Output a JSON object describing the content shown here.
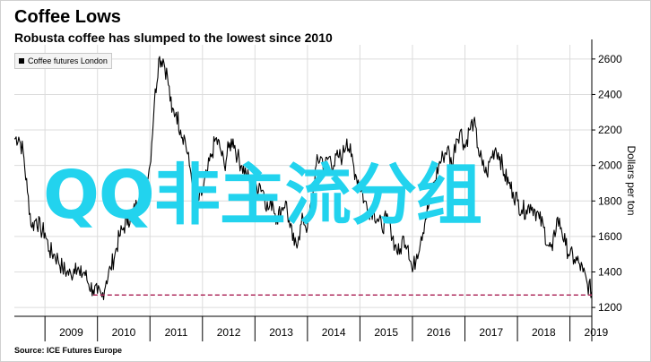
{
  "header": {
    "title": "Coffee Lows",
    "subtitle": "Robusta coffee has slumped to the lowest since 2010"
  },
  "legend_label": "Coffee futures London",
  "source": "Source: ICE Futures Europe",
  "watermark": "QQ非主流分组",
  "colors": {
    "line": "#000000",
    "reference": "#b03060",
    "grid": "#dcdcdc",
    "watermark": "#22d3ee"
  },
  "chart_data": {
    "type": "line",
    "title": "Coffee Lows",
    "subtitle": "Robusta coffee has slumped to the lowest since 2010",
    "xlabel": "",
    "ylabel": "Dollars per ton",
    "x_tick_labels": [
      "2009",
      "2010",
      "2011",
      "2012",
      "2013",
      "2014",
      "2015",
      "2016",
      "2017",
      "2018",
      "2019"
    ],
    "y_ticks": [
      1200,
      1400,
      1600,
      1800,
      2000,
      2200,
      2400,
      2600
    ],
    "xlim": [
      "2008-06",
      "2019-06"
    ],
    "ylim": [
      1150,
      2680
    ],
    "grid": true,
    "legend_position": "top-left",
    "reference_line": {
      "value": 1270,
      "style": "dashed",
      "from": "2009-12",
      "to": "2019-06"
    },
    "series": [
      {
        "name": "Coffee futures London",
        "points": [
          [
            "2008-06",
            2150
          ],
          [
            "2008-07",
            2160
          ],
          [
            "2008-08",
            2080
          ],
          [
            "2008-09",
            1850
          ],
          [
            "2008-10",
            1650
          ],
          [
            "2008-11",
            1700
          ],
          [
            "2008-12",
            1640
          ],
          [
            "2009-01",
            1620
          ],
          [
            "2009-02",
            1520
          ],
          [
            "2009-03",
            1500
          ],
          [
            "2009-04",
            1470
          ],
          [
            "2009-05",
            1420
          ],
          [
            "2009-06",
            1400
          ],
          [
            "2009-07",
            1380
          ],
          [
            "2009-08",
            1450
          ],
          [
            "2009-09",
            1380
          ],
          [
            "2009-10",
            1400
          ],
          [
            "2009-11",
            1330
          ],
          [
            "2009-12",
            1300
          ],
          [
            "2010-01",
            1280
          ],
          [
            "2010-02",
            1260
          ],
          [
            "2010-03",
            1350
          ],
          [
            "2010-04",
            1420
          ],
          [
            "2010-05",
            1500
          ],
          [
            "2010-06",
            1600
          ],
          [
            "2010-07",
            1650
          ],
          [
            "2010-08",
            1700
          ],
          [
            "2010-09",
            1720
          ],
          [
            "2010-10",
            1780
          ],
          [
            "2010-11",
            1830
          ],
          [
            "2010-12",
            1900
          ],
          [
            "2011-01",
            2000
          ],
          [
            "2011-02",
            2350
          ],
          [
            "2011-03",
            2600
          ],
          [
            "2011-04",
            2600
          ],
          [
            "2011-05",
            2500
          ],
          [
            "2011-06",
            2300
          ],
          [
            "2011-07",
            2300
          ],
          [
            "2011-08",
            2200
          ],
          [
            "2011-09",
            2150
          ],
          [
            "2011-10",
            2000
          ],
          [
            "2011-11",
            1900
          ],
          [
            "2011-12",
            1800
          ],
          [
            "2012-01",
            1850
          ],
          [
            "2012-02",
            1950
          ],
          [
            "2012-03",
            2050
          ],
          [
            "2012-04",
            2150
          ],
          [
            "2012-05",
            2100
          ],
          [
            "2012-06",
            2000
          ],
          [
            "2012-07",
            2100
          ],
          [
            "2012-08",
            2150
          ],
          [
            "2012-09",
            2050
          ],
          [
            "2012-10",
            2000
          ],
          [
            "2012-11",
            1950
          ],
          [
            "2012-12",
            1900
          ],
          [
            "2013-01",
            1850
          ],
          [
            "2013-02",
            1900
          ],
          [
            "2013-03",
            1850
          ],
          [
            "2013-04",
            1750
          ],
          [
            "2013-05",
            1800
          ],
          [
            "2013-06",
            1700
          ],
          [
            "2013-07",
            1750
          ],
          [
            "2013-08",
            1800
          ],
          [
            "2013-09",
            1650
          ],
          [
            "2013-10",
            1550
          ],
          [
            "2013-11",
            1600
          ],
          [
            "2013-12",
            1700
          ],
          [
            "2014-01",
            1650
          ],
          [
            "2014-02",
            1800
          ],
          [
            "2014-03",
            2000
          ],
          [
            "2014-04",
            2050
          ],
          [
            "2014-05",
            2000
          ],
          [
            "2014-06",
            2050
          ],
          [
            "2014-07",
            2000
          ],
          [
            "2014-08",
            2050
          ],
          [
            "2014-09",
            2050
          ],
          [
            "2014-10",
            2150
          ],
          [
            "2014-11",
            2050
          ],
          [
            "2014-12",
            1950
          ],
          [
            "2015-01",
            1900
          ],
          [
            "2015-02",
            1800
          ],
          [
            "2015-03",
            1750
          ],
          [
            "2015-04",
            1750
          ],
          [
            "2015-05",
            1700
          ],
          [
            "2015-06",
            1650
          ],
          [
            "2015-07",
            1700
          ],
          [
            "2015-08",
            1650
          ],
          [
            "2015-09",
            1550
          ],
          [
            "2015-10",
            1500
          ],
          [
            "2015-11",
            1600
          ],
          [
            "2015-12",
            1550
          ],
          [
            "2016-01",
            1400
          ],
          [
            "2016-02",
            1500
          ],
          [
            "2016-03",
            1600
          ],
          [
            "2016-04",
            1700
          ],
          [
            "2016-05",
            1800
          ],
          [
            "2016-06",
            1900
          ],
          [
            "2016-07",
            2000
          ],
          [
            "2016-08",
            2050
          ],
          [
            "2016-09",
            2100
          ],
          [
            "2016-10",
            2000
          ],
          [
            "2016-11",
            2150
          ],
          [
            "2016-12",
            2200
          ],
          [
            "2017-01",
            2100
          ],
          [
            "2017-02",
            2200
          ],
          [
            "2017-03",
            2250
          ],
          [
            "2017-04",
            2100
          ],
          [
            "2017-05",
            2000
          ],
          [
            "2017-06",
            1950
          ],
          [
            "2017-07",
            2050
          ],
          [
            "2017-08",
            2100
          ],
          [
            "2017-09",
            2050
          ],
          [
            "2017-10",
            1950
          ],
          [
            "2017-11",
            1900
          ],
          [
            "2017-12",
            1850
          ],
          [
            "2018-01",
            1800
          ],
          [
            "2018-02",
            1750
          ],
          [
            "2018-03",
            1750
          ],
          [
            "2018-04",
            1780
          ],
          [
            "2018-05",
            1750
          ],
          [
            "2018-06",
            1700
          ],
          [
            "2018-07",
            1650
          ],
          [
            "2018-08",
            1550
          ],
          [
            "2018-09",
            1520
          ],
          [
            "2018-10",
            1700
          ],
          [
            "2018-11",
            1650
          ],
          [
            "2018-12",
            1550
          ],
          [
            "2019-01",
            1500
          ],
          [
            "2019-02",
            1470
          ],
          [
            "2019-03",
            1450
          ],
          [
            "2019-04",
            1400
          ],
          [
            "2019-05",
            1330
          ],
          [
            "2019-06",
            1290
          ]
        ]
      }
    ]
  }
}
